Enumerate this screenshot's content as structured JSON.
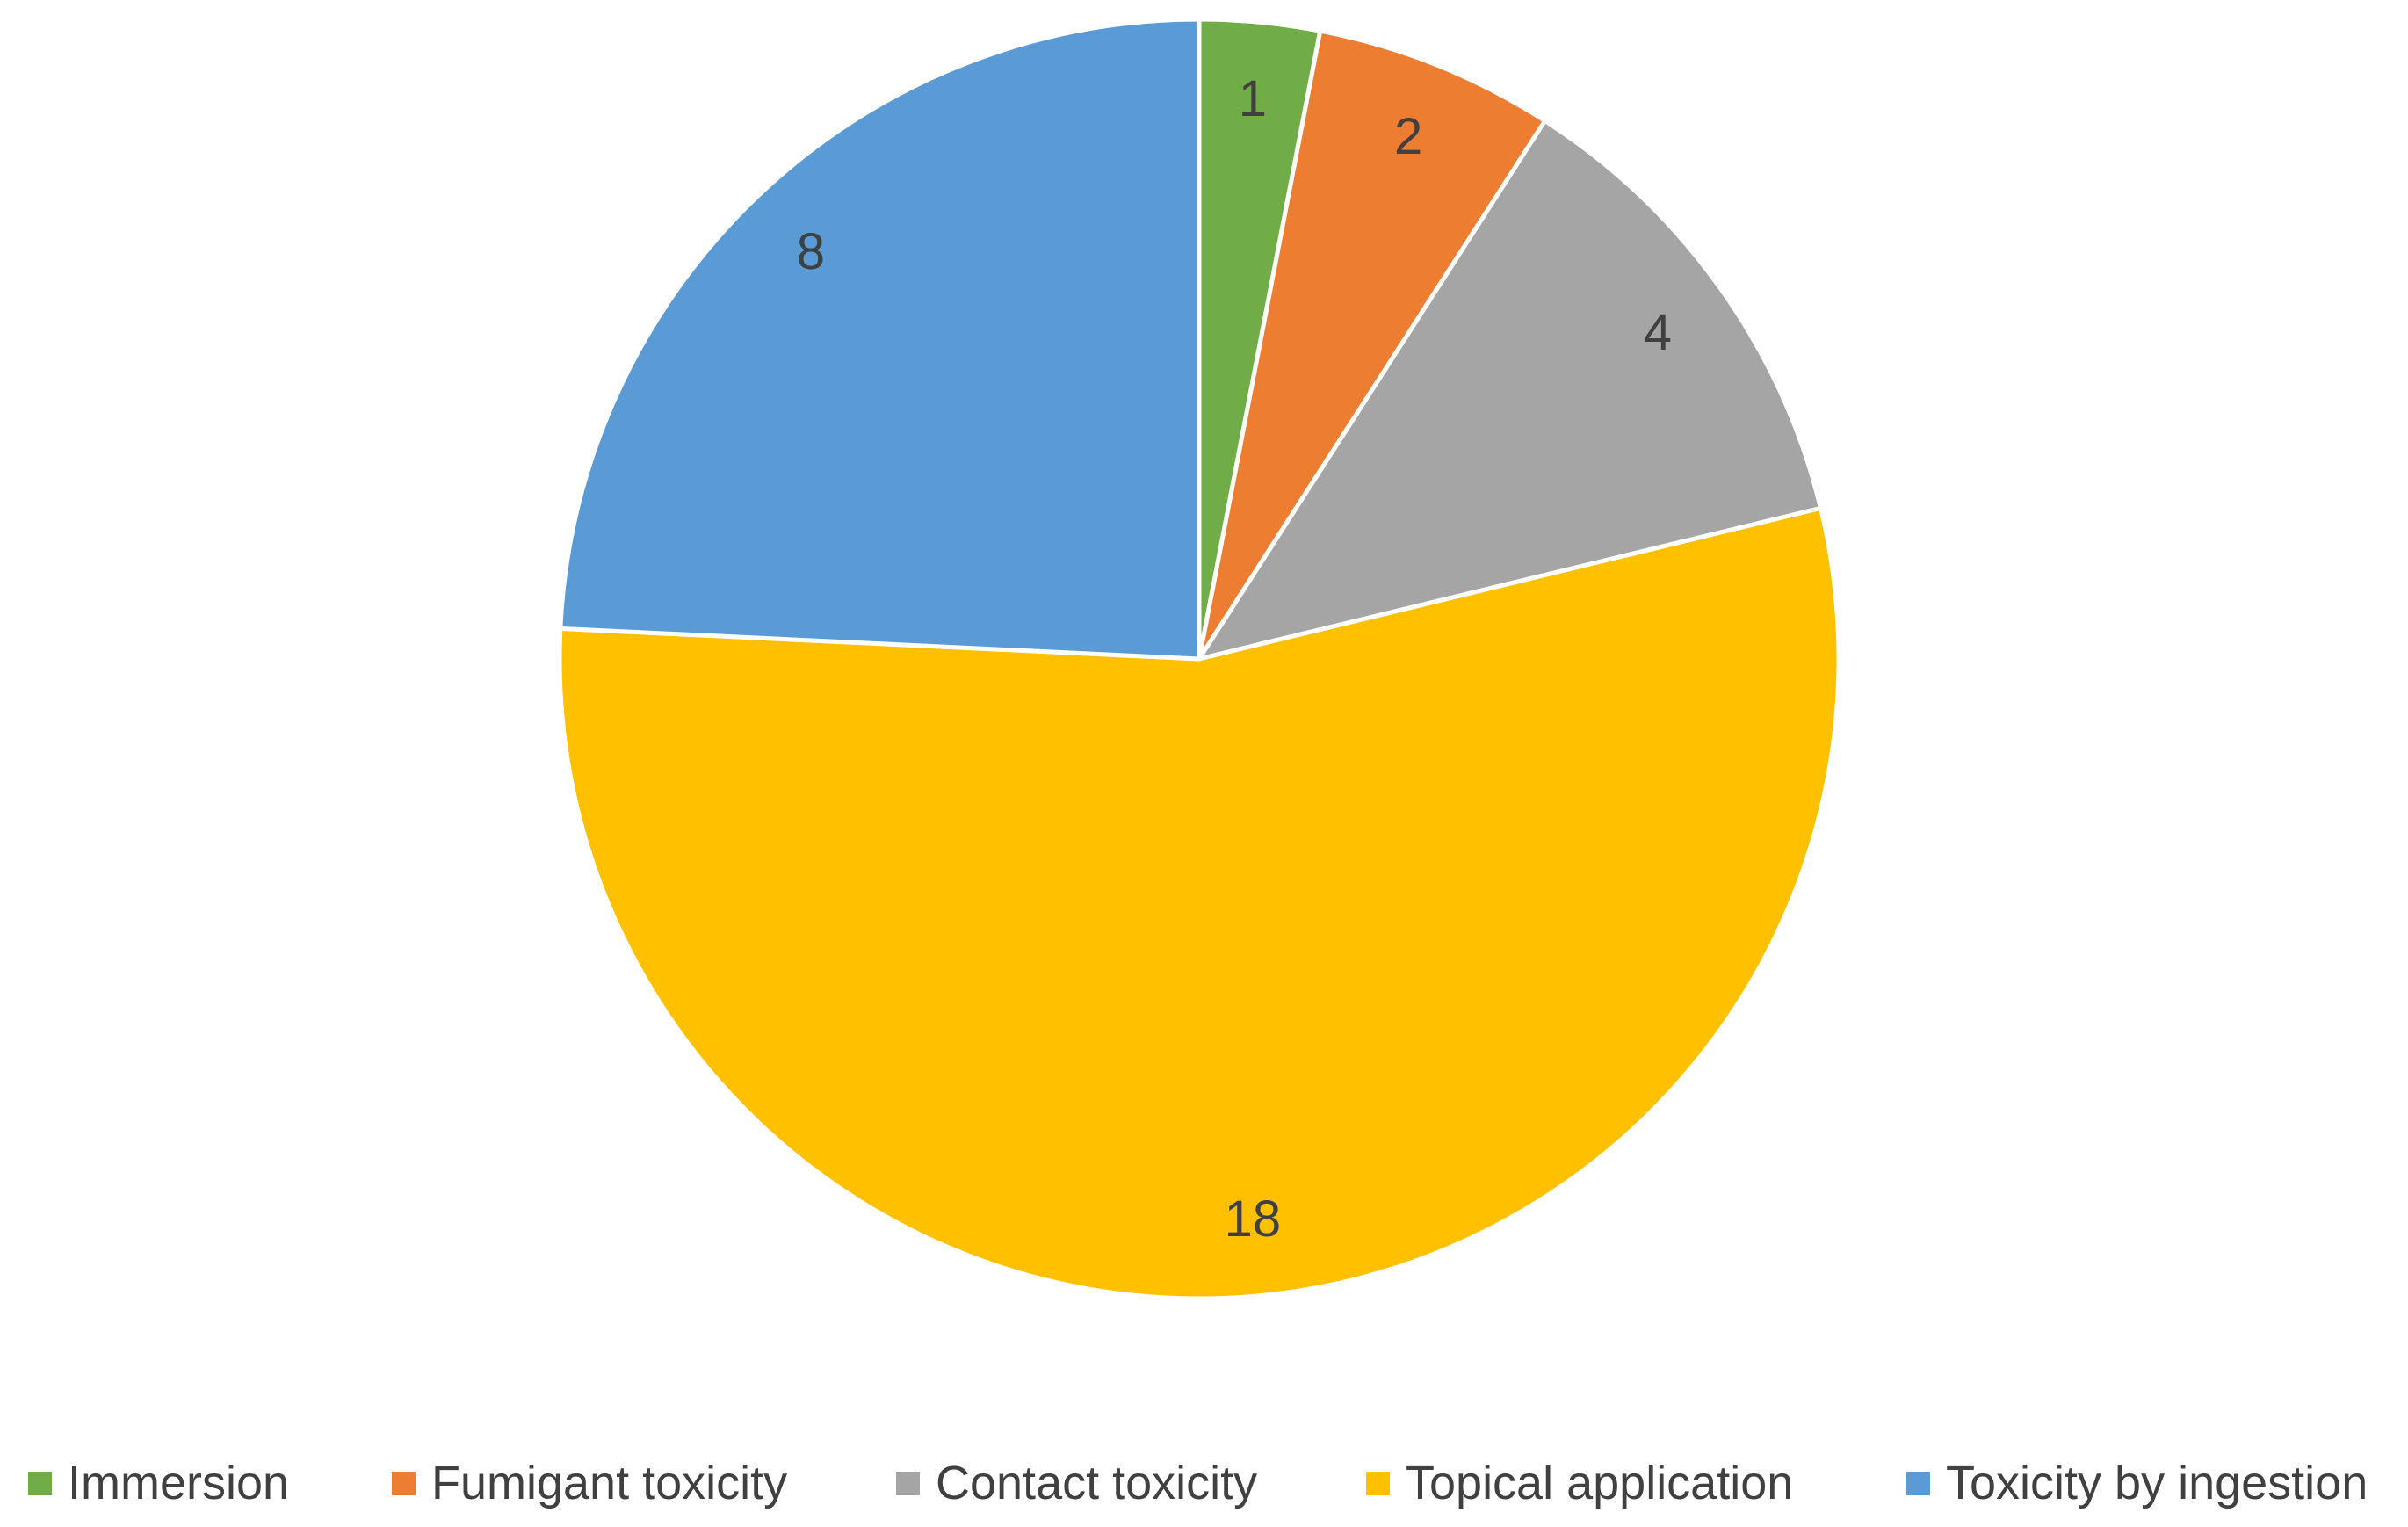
{
  "chart_data": {
    "type": "pie",
    "title": "",
    "categories": [
      "Immersion",
      "Fumigant toxicity",
      "Contact toxicity",
      "Topical application",
      "Toxicity by ingestion"
    ],
    "values": [
      1,
      2,
      4,
      18,
      8
    ],
    "colors": [
      "#70AD47",
      "#ED7D31",
      "#A5A5A5",
      "#FFC000",
      "#5B9BD5"
    ],
    "start_angle": "12 o'clock",
    "direction": "clockwise",
    "data_labels": [
      "1",
      "2",
      "4",
      "18",
      "8"
    ],
    "legend_position": "bottom"
  }
}
